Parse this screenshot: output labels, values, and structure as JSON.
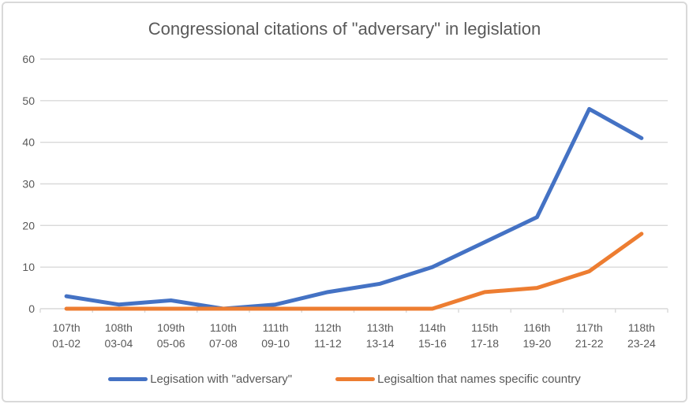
{
  "chart_data": {
    "type": "line",
    "title": "Congressional citations of \"adversary\" in legislation",
    "categories": [
      "107th",
      "108th",
      "109th",
      "110th",
      "111th",
      "112th",
      "113th",
      "114th",
      "115th",
      "116th",
      "117th",
      "118th"
    ],
    "categories_line2": [
      "01-02",
      "03-04",
      "05-06",
      "07-08",
      "09-10",
      "11-12",
      "13-14",
      "15-16",
      "17-18",
      "19-20",
      "21-22",
      "23-24"
    ],
    "series": [
      {
        "name": "Legisation with \"adversary\"",
        "color": "#4472C4",
        "values": [
          3,
          1,
          2,
          0,
          1,
          4,
          6,
          10,
          16,
          22,
          48,
          41
        ]
      },
      {
        "name": "Legisaltion that names specific country",
        "color": "#ED7D31",
        "values": [
          0,
          0,
          0,
          0,
          0,
          0,
          0,
          0,
          4,
          5,
          9,
          18
        ]
      }
    ],
    "ylim": [
      0,
      60
    ],
    "yticks": [
      0,
      10,
      20,
      30,
      40,
      50,
      60
    ],
    "grid": true,
    "legend_position": "bottom",
    "colors": {
      "gridline": "#D9D9D9",
      "tick_text": "#595959",
      "title_text": "#595959",
      "frame_border": "#D9D9D9"
    }
  }
}
